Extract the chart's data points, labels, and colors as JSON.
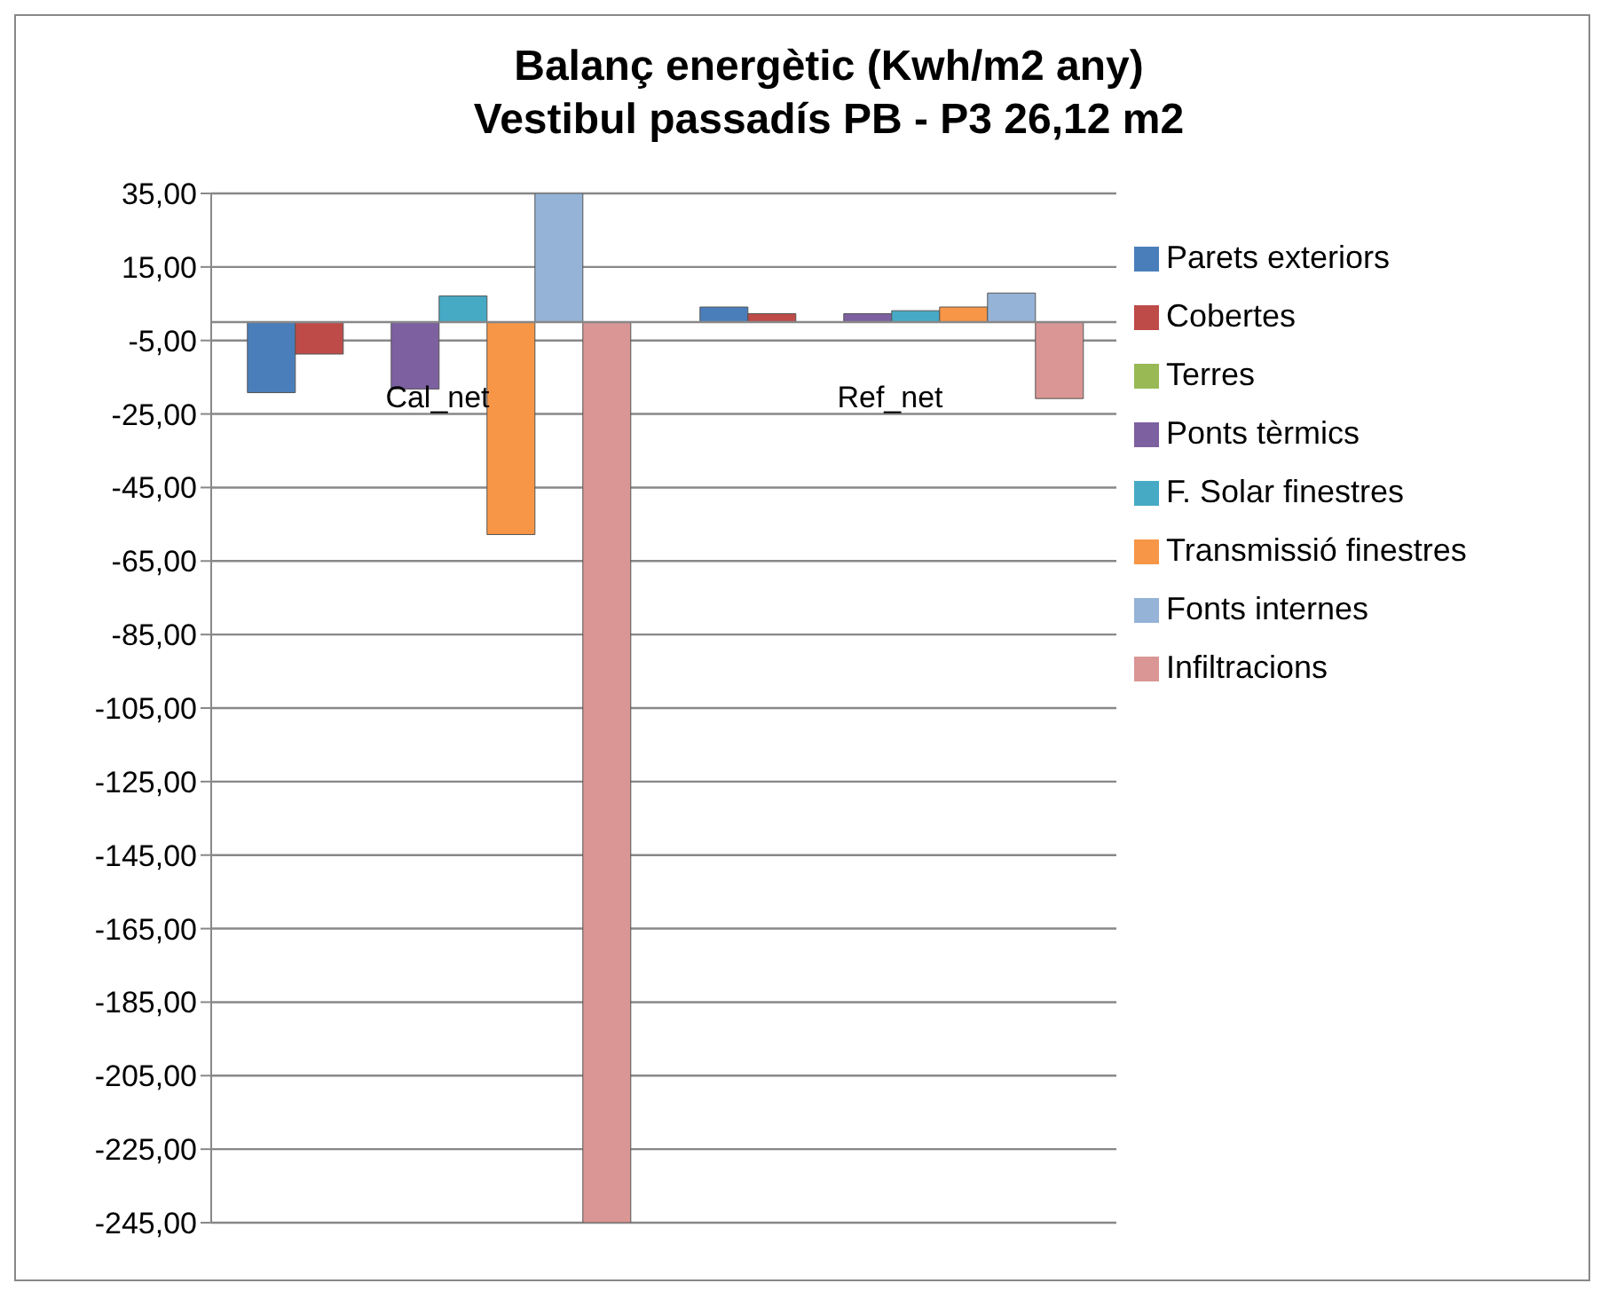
{
  "chart_data": {
    "type": "bar",
    "title": "Balanç energètic (Kwh/m2 any)\nVestibul passadís PB - P3 26,12 m2",
    "categories": [
      "Cal_net",
      "Ref_net"
    ],
    "series": [
      {
        "name": "Parets exteriors",
        "color": "#4a7ebb",
        "values": [
          -19.2,
          4.1
        ]
      },
      {
        "name": "Cobertes",
        "color": "#be4b48",
        "values": [
          -8.7,
          2.3
        ]
      },
      {
        "name": "Terres",
        "color": "#98b954",
        "values": [
          0,
          0
        ]
      },
      {
        "name": "Ponts tèrmics",
        "color": "#7d60a0",
        "values": [
          -18.2,
          2.3
        ]
      },
      {
        "name": "F. Solar finestres",
        "color": "#46aac5",
        "values": [
          7.1,
          3.1
        ]
      },
      {
        "name": "Transmissió finestres",
        "color": "#f79646",
        "values": [
          -57.8,
          4.1
        ]
      },
      {
        "name": "Fonts internes",
        "color": "#95b3d7",
        "values": [
          35,
          7.9
        ]
      },
      {
        "name": "Infiltracions",
        "color": "#d99694",
        "values": [
          -245,
          -20.8
        ]
      }
    ],
    "ylim": [
      -245,
      35
    ],
    "yticks": [
      {
        "value": 35,
        "label": "35,00"
      },
      {
        "value": 15,
        "label": "15,00"
      },
      {
        "value": -5,
        "label": "-5,00"
      },
      {
        "value": -25,
        "label": "-25,00"
      },
      {
        "value": -45,
        "label": "-45,00"
      },
      {
        "value": -65,
        "label": "-65,00"
      },
      {
        "value": -85,
        "label": "-85,00"
      },
      {
        "value": -105,
        "label": "-105,00"
      },
      {
        "value": -125,
        "label": "-125,00"
      },
      {
        "value": -145,
        "label": "-145,00"
      },
      {
        "value": -165,
        "label": "-165,00"
      },
      {
        "value": -185,
        "label": "-185,00"
      },
      {
        "value": -205,
        "label": "-205,00"
      },
      {
        "value": -225,
        "label": "-225,00"
      },
      {
        "value": -245,
        "label": "-245,00"
      }
    ],
    "grid": "y",
    "legend": "right"
  }
}
